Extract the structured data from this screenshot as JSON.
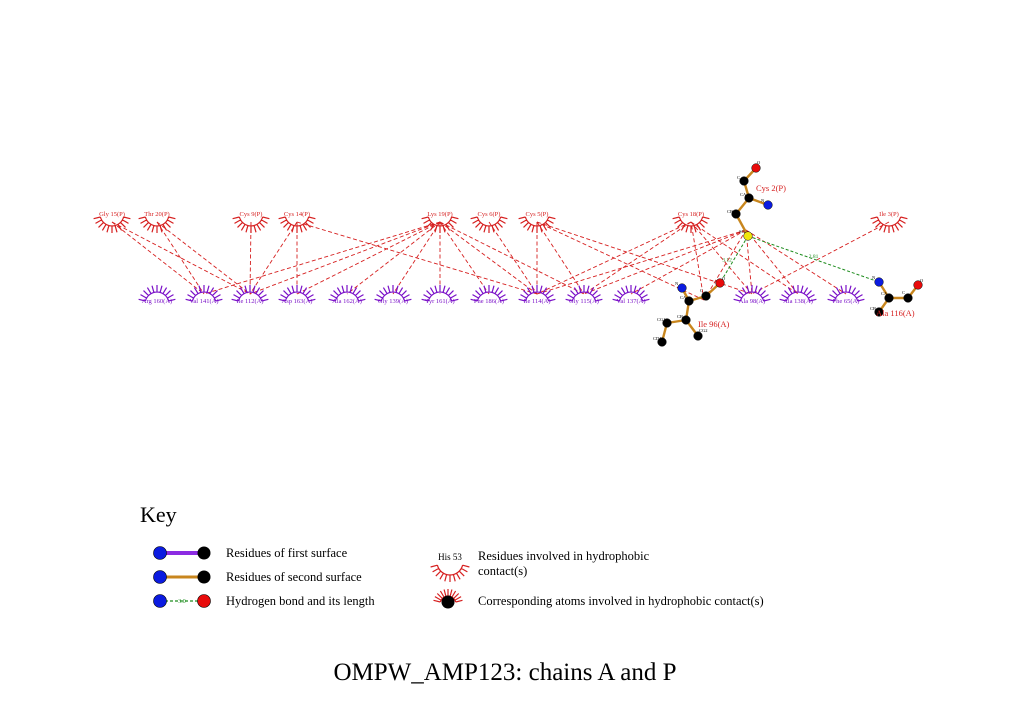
{
  "colors": {
    "chain_p": "#d61f1f",
    "chain_a": "#7a10c8",
    "contact_line": "#d61f1f",
    "hbond": "#1e8c1e",
    "bond_second": "#c8861e",
    "bond_first": "#8c2be2",
    "atom_n": "#0b1be0",
    "atom_o": "#e80b0b",
    "atom_c": "#000000",
    "atom_s": "#f0e60a"
  },
  "residues_p": [
    {
      "id": "gly15",
      "label": "Gly 15(P)"
    },
    {
      "id": "thr20",
      "label": "Thr 20(P)"
    },
    {
      "id": "cys9",
      "label": "Cys 9(P)"
    },
    {
      "id": "cys14",
      "label": "Cys 14(P)"
    },
    {
      "id": "lys19",
      "label": "Lys 19(P)"
    },
    {
      "id": "cys6",
      "label": "Cys 6(P)"
    },
    {
      "id": "cys5",
      "label": "Cys 5(P)"
    },
    {
      "id": "cys18",
      "label": "Cys 18(P)"
    },
    {
      "id": "ile3",
      "label": "Ile 3(P)"
    }
  ],
  "residues_a": [
    {
      "id": "arg160",
      "label": "Arg 160(A)"
    },
    {
      "id": "val141",
      "label": "Val 141(A)"
    },
    {
      "id": "ile112",
      "label": "Ile 112(A)"
    },
    {
      "id": "asp163",
      "label": "Asp 163(A)"
    },
    {
      "id": "ala162",
      "label": "Ala 162(A)"
    },
    {
      "id": "gly139",
      "label": "Gly 139(A)"
    },
    {
      "id": "tyr161",
      "label": "Tyr 161(A)"
    },
    {
      "id": "phe186",
      "label": "Phe 186(A)"
    },
    {
      "id": "ile114",
      "label": "Ile 114(A)"
    },
    {
      "id": "gly115",
      "label": "Gly 115(A)"
    },
    {
      "id": "val137",
      "label": "Val 137(A)"
    },
    {
      "id": "ala98",
      "label": "Ala 98(A)"
    },
    {
      "id": "ala138",
      "label": "Ala 138(A)"
    },
    {
      "id": "phe65",
      "label": "Phe 65(A)"
    }
  ],
  "molecules": {
    "cys2": {
      "label": "Cys 2(P)",
      "atom_labels": {
        "o": "O",
        "c": "C",
        "ca": "CA",
        "n": "N",
        "cb": "CB",
        "sg": "SG"
      }
    },
    "ile96": {
      "label": "Ile 96(A)",
      "atom_labels": {
        "n": "N",
        "o": "O",
        "c": "C",
        "ca": "CA",
        "cb": "CB",
        "cg1": "CG1",
        "cd1": "CD1",
        "cg2": "CG2"
      }
    },
    "ala116": {
      "label": "Ala 116(A)",
      "atom_labels": {
        "n": "N",
        "ca": "CA",
        "c": "C",
        "o": "O",
        "cb": "CB"
      }
    }
  },
  "hbonds": [
    {
      "from": "Cys 2(P) SG",
      "to": "Ile 96(A) O",
      "length": "3.12"
    },
    {
      "from": "Cys 2(P) SG",
      "to": "Ala 116(A) N",
      "length": "2.81"
    }
  ],
  "contacts": [
    [
      "gly15",
      "val141"
    ],
    [
      "gly15",
      "ile112"
    ],
    [
      "thr20",
      "ile112"
    ],
    [
      "thr20",
      "val141"
    ],
    [
      "cys9",
      "ile112"
    ],
    [
      "cys14",
      "asp163"
    ],
    [
      "cys14",
      "ile112"
    ],
    [
      "cys14",
      "ile114"
    ],
    [
      "lys19",
      "val141"
    ],
    [
      "lys19",
      "ile112"
    ],
    [
      "lys19",
      "asp163"
    ],
    [
      "lys19",
      "ala162"
    ],
    [
      "lys19",
      "gly139"
    ],
    [
      "lys19",
      "tyr161"
    ],
    [
      "lys19",
      "phe186"
    ],
    [
      "lys19",
      "ile114"
    ],
    [
      "lys19",
      "gly115"
    ],
    [
      "cys6",
      "ile114"
    ],
    [
      "cys5",
      "ile114"
    ],
    [
      "cys5",
      "gly115"
    ],
    [
      "cys5",
      "ala98"
    ],
    [
      "cys18",
      "ile114"
    ],
    [
      "cys18",
      "gly115"
    ],
    [
      "cys18",
      "ala98"
    ],
    [
      "cys18",
      "ala138"
    ],
    [
      "ile3",
      "ala98"
    ],
    [
      "cys2",
      "ile114"
    ],
    [
      "cys2",
      "gly115"
    ],
    [
      "cys2",
      "val137"
    ],
    [
      "cys2",
      "ala98"
    ],
    [
      "cys2",
      "ala138"
    ],
    [
      "cys2",
      "phe65"
    ],
    [
      "ile96",
      "cys5"
    ],
    [
      "ile96",
      "cys18"
    ],
    [
      "ile96",
      "cys2"
    ]
  ],
  "key": {
    "title": "Key",
    "first_surface": "Residues of first surface",
    "second_surface": "Residues of second surface",
    "hbond": "Hydrogen bond and its length",
    "hbond_sample_length": "3.0",
    "hydrophobic_residue_line1": "Residues involved in hydrophobic",
    "hydrophobic_residue_line2": "contact(s)",
    "hydrophobic_sample_label": "His 53",
    "hydrophobic_atoms": "Corresponding atoms involved in hydrophobic contact(s)"
  },
  "caption": "OMPW_AMP123: chains A and P"
}
